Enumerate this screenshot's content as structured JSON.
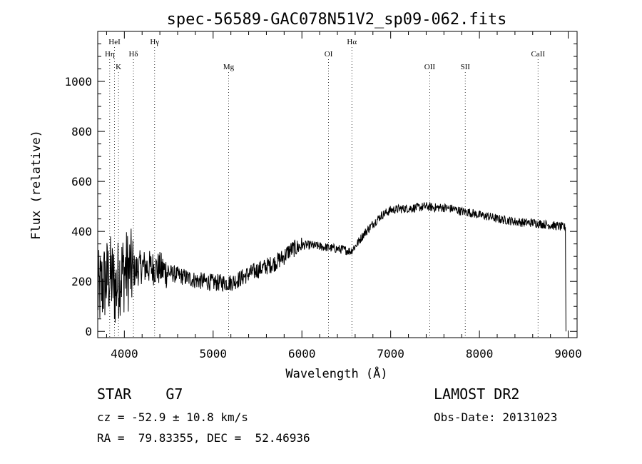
{
  "chart_data": {
    "type": "line",
    "title": "spec-56589-GAC078N51V2_sp09-062.fits",
    "xlabel": "Wavelength (Å)",
    "ylabel": "Flux (relative)",
    "xlim": [
      3700,
      9100
    ],
    "ylim": [
      -25,
      1200
    ],
    "xticks": [
      4000,
      5000,
      6000,
      7000,
      8000,
      9000
    ],
    "yticks": [
      0,
      200,
      400,
      600,
      800,
      1000
    ],
    "xtick_labels": [
      "4000",
      "5000",
      "6000",
      "7000",
      "8000",
      "9000"
    ],
    "ytick_labels": [
      "0",
      "200",
      "400",
      "600",
      "800",
      "1000"
    ],
    "grid": false,
    "line_color": "#000000",
    "lines": [
      {
        "label": "HeI",
        "wave": 3889,
        "row": 0
      },
      {
        "label": "Hη",
        "wave": 3835,
        "row": 1
      },
      {
        "label": "K",
        "wave": 3934,
        "row": 2
      },
      {
        "label": "Hδ",
        "wave": 4102,
        "row": 1
      },
      {
        "label": "Hγ",
        "wave": 4341,
        "row": 0
      },
      {
        "label": "Mg",
        "wave": 5175,
        "row": 2
      },
      {
        "label": "OI",
        "wave": 6300,
        "row": 1
      },
      {
        "label": "Hα",
        "wave": 6563,
        "row": 0
      },
      {
        "label": "OII",
        "wave": 7440,
        "row": 2
      },
      {
        "label": "SII",
        "wave": 7840,
        "row": 2
      },
      {
        "label": "CaII",
        "wave": 8660,
        "row": 1
      }
    ],
    "spectrum": {
      "x": [
        3700,
        3750,
        3800,
        3850,
        3900,
        3950,
        4000,
        4050,
        4100,
        4200,
        4300,
        4400,
        4500,
        4600,
        4700,
        4800,
        4900,
        5000,
        5100,
        5200,
        5300,
        5400,
        5500,
        5600,
        5700,
        5800,
        5850,
        5900,
        5950,
        6000,
        6050,
        6100,
        6200,
        6300,
        6400,
        6500,
        6550,
        6600,
        6700,
        6800,
        6900,
        7000,
        7100,
        7200,
        7300,
        7400,
        7500,
        7600,
        7700,
        7800,
        7900,
        8000,
        8100,
        8200,
        8300,
        8400,
        8500,
        8600,
        8700,
        8800,
        8900,
        8970
      ],
      "y": [
        150,
        180,
        210,
        220,
        170,
        230,
        240,
        245,
        240,
        260,
        255,
        250,
        235,
        225,
        215,
        205,
        200,
        195,
        195,
        195,
        210,
        230,
        245,
        260,
        275,
        300,
        320,
        330,
        335,
        345,
        345,
        345,
        340,
        335,
        330,
        325,
        320,
        340,
        390,
        430,
        465,
        485,
        490,
        492,
        495,
        500,
        495,
        495,
        490,
        480,
        475,
        465,
        460,
        450,
        445,
        440,
        435,
        435,
        430,
        425,
        420,
        415
      ]
    }
  },
  "info": {
    "object": "STAR    G7",
    "survey": "LAMOST DR2",
    "cz": "cz = -52.9 ± 10.8 km/s",
    "obs_date": "Obs-Date: 20131023",
    "radec": "RA =  79.83355, DEC =  52.46936"
  }
}
